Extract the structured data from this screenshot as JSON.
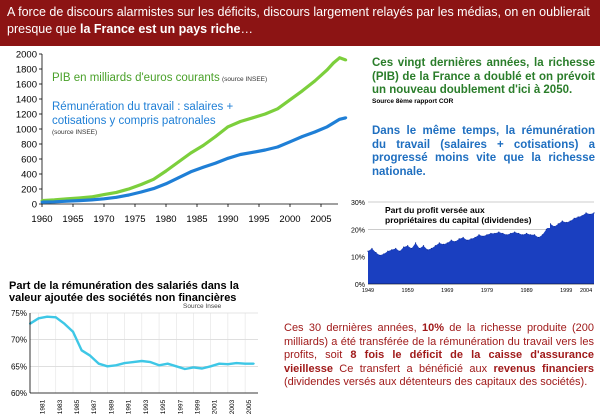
{
  "banner": {
    "line1": "A force de discours alarmistes sur les déficits, discours largement relayés par les médias, on en oublierait presque que ",
    "bold": "la France est un pays riche",
    "tail": "…"
  },
  "colors": {
    "banner_bg": "#8c1414",
    "pib": "#7ccf3c",
    "remuneration": "#1f7fd6",
    "profit_area": "#1a3fc0",
    "salaire_line": "#3ec7e6",
    "green_text": "#2a7d2a",
    "blue_text": "#1f6fc0",
    "red_text": "#a01a1a"
  },
  "right_texts": {
    "green": "Ces vingt dernières années, la richesse (PIB) de la France a doublé et on prévoit un nouveau doublement d'ici à 2050.",
    "green_source": "Source 8ème rapport COR",
    "blue": "Dans le même temps, la rémunération du travail (salaires + cotisations) a progressé moins vite que la richesse nationale."
  },
  "bottom_text": {
    "p1": "Ces 30 dernières années, ",
    "b1": "10%",
    "p2": " de la richesse produite (200 milliards) a été transférée de la rémunération du travail vers les profits, soit ",
    "b2": "8 fois le déficit de la caisse d'assurance vieillesse",
    "p3": " Ce transfert a bénéficié aux ",
    "b3": "revenus financiers",
    "p4": " (dividendes versés aux détenteurs des capitaux des sociétés)."
  },
  "chart_data": [
    {
      "type": "line",
      "title": "",
      "xlabel": "",
      "ylabel": "",
      "xlim": [
        1960,
        2010
      ],
      "ylim": [
        0,
        2000
      ],
      "x_ticks": [
        "1960",
        "1965",
        "1970",
        "1975",
        "1980",
        "1985",
        "1990",
        "1995",
        "2000",
        "2005"
      ],
      "y_ticks": [
        "0",
        "200",
        "400",
        "600",
        "800",
        "1000",
        "1200",
        "1400",
        "1600",
        "1800",
        "2000"
      ],
      "grid": false,
      "series": [
        {
          "name": "PIB en milliards d'euros courants",
          "source": "(source INSEE)",
          "color": "#7ccf3c",
          "x": [
            1960,
            1962,
            1964,
            1966,
            1968,
            1970,
            1972,
            1974,
            1976,
            1978,
            1980,
            1982,
            1984,
            1986,
            1988,
            1990,
            1992,
            1994,
            1996,
            1998,
            2000,
            2002,
            2004,
            2006,
            2007,
            2008,
            2009
          ],
          "values": [
            45,
            55,
            68,
            80,
            95,
            125,
            155,
            200,
            260,
            330,
            440,
            560,
            680,
            780,
            900,
            1030,
            1100,
            1150,
            1200,
            1270,
            1390,
            1510,
            1640,
            1790,
            1880,
            1950,
            1920
          ]
        },
        {
          "name": "Rémunération du travail : salaires + cotisations  y compris patronales",
          "source": "(source INSEE)",
          "color": "#1f7fd6",
          "x": [
            1960,
            1962,
            1964,
            1966,
            1968,
            1970,
            1972,
            1974,
            1976,
            1978,
            1980,
            1982,
            1984,
            1986,
            1988,
            1990,
            1992,
            1994,
            1996,
            1998,
            2000,
            2002,
            2004,
            2006,
            2008,
            2009
          ],
          "values": [
            25,
            30,
            38,
            45,
            55,
            70,
            90,
            120,
            160,
            205,
            270,
            350,
            430,
            490,
            545,
            610,
            660,
            690,
            720,
            760,
            830,
            900,
            960,
            1030,
            1130,
            1150
          ]
        }
      ]
    },
    {
      "type": "area",
      "title": "Part du profit versée aux propriétaires du capital (dividendes)",
      "ylim": [
        0,
        30
      ],
      "y_ticks": [
        "0%",
        "10%",
        "20%",
        "30%"
      ],
      "x_ticks": [
        "1949",
        "1959",
        "1969",
        "1979",
        "1989",
        "1999",
        "2004"
      ],
      "grid": true,
      "series": [
        {
          "name": "",
          "color": "#1a3fc0",
          "x": [
            1949,
            1950,
            1951,
            1952,
            1953,
            1954,
            1955,
            1956,
            1957,
            1958,
            1959,
            1960,
            1961,
            1962,
            1963,
            1964,
            1965,
            1966,
            1967,
            1968,
            1969,
            1970,
            1971,
            1972,
            1973,
            1974,
            1975,
            1976,
            1977,
            1978,
            1979,
            1980,
            1981,
            1982,
            1983,
            1984,
            1985,
            1986,
            1987,
            1988,
            1989,
            1990,
            1991,
            1992,
            1993,
            1994,
            1995,
            1996,
            1997,
            1998,
            1999,
            2000,
            2001,
            2002,
            2003,
            2004,
            2005,
            2006
          ],
          "values": [
            12,
            13,
            11.5,
            10.5,
            11,
            12,
            12.5,
            13,
            12,
            13.5,
            14,
            13,
            15,
            13,
            14,
            12.5,
            13,
            14,
            15,
            14.5,
            15,
            16,
            15.5,
            16.5,
            17,
            16,
            16.5,
            17,
            18,
            17.5,
            18,
            18.5,
            18.5,
            19,
            18.5,
            18,
            18.5,
            19,
            18.5,
            18,
            18.5,
            18,
            18,
            17,
            18,
            20,
            22,
            21,
            22,
            23,
            22.5,
            23,
            24,
            24.5,
            25,
            26,
            25.5,
            26
          ]
        }
      ]
    },
    {
      "type": "line",
      "title": "Part de la rémunération des salariés dans la valeur ajoutée des sociétés non financières",
      "source": "Source Insee",
      "ylim": [
        60,
        75
      ],
      "y_ticks": [
        "60%",
        "65%",
        "70%",
        "75%"
      ],
      "x_ticks": [
        "1981",
        "1983",
        "1985",
        "1987",
        "1989",
        "1991",
        "1993",
        "1995",
        "1997",
        "1999",
        "2001",
        "2003",
        "2005"
      ],
      "grid": true,
      "series": [
        {
          "name": "",
          "color": "#3ec7e6",
          "x": [
            1980,
            1981,
            1982,
            1983,
            1984,
            1985,
            1986,
            1987,
            1988,
            1989,
            1990,
            1991,
            1992,
            1993,
            1994,
            1995,
            1996,
            1997,
            1998,
            1999,
            2000,
            2001,
            2002,
            2003,
            2004,
            2005,
            2006
          ],
          "values": [
            73,
            74,
            74.3,
            74.2,
            73,
            71.5,
            68,
            67,
            65.5,
            65,
            65.2,
            65.6,
            65.8,
            66,
            65.8,
            65.2,
            65.5,
            65,
            64.5,
            64.8,
            64.6,
            65,
            65.5,
            65.4,
            65.6,
            65.5,
            65.5
          ]
        }
      ]
    }
  ]
}
